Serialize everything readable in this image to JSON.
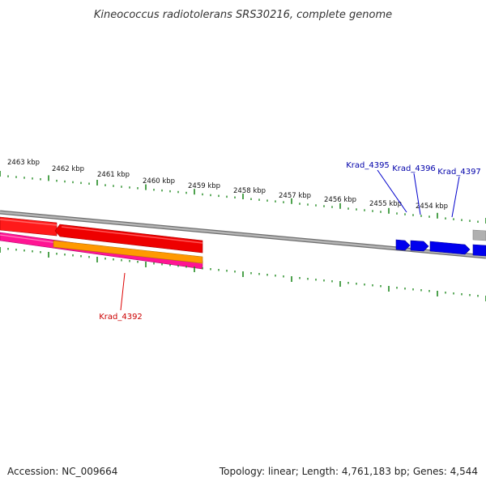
{
  "title": "Kineococcus radiotolerans SRS30216, complete genome",
  "footer": {
    "accession": "Accession: NC_009664",
    "summary": "Topology: linear; Length: 4,761,183 bp; Genes: 4,544"
  },
  "ruler": {
    "labels": [
      "2463 kbp",
      "2462 kbp",
      "2461 kbp",
      "2460 kbp",
      "2459 kbp",
      "2458 kbp",
      "2457 kbp",
      "2456 kbp",
      "2455 kbp",
      "2454 kbp"
    ]
  },
  "genes": {
    "krad_4392": {
      "label": "Krad_4392",
      "color": "#d00000"
    },
    "krad_4395": {
      "label": "Krad_4395",
      "color": "#0000cc"
    },
    "krad_4396": {
      "label": "Krad_4396",
      "color": "#0000cc"
    },
    "krad_4397": {
      "label": "Krad_4397",
      "color": "#0000cc"
    }
  },
  "colors": {
    "tick": "#228b22",
    "backbone": "#8c8c8c",
    "forward_gene": "#0000ee",
    "reverse_gene": "#ee0000",
    "rna_gene": "#ff1493",
    "feature_orange": "#ff8c00",
    "grey_feature": "#b0b0b0"
  }
}
